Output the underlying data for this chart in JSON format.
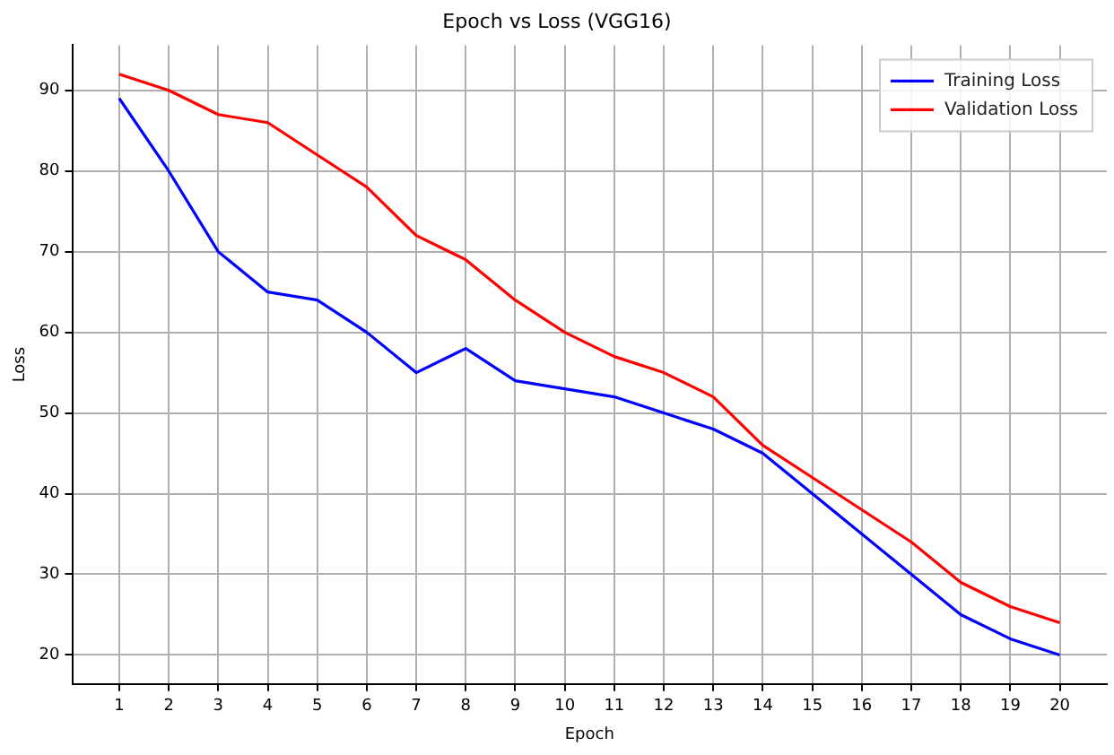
{
  "chart_data": {
    "type": "line",
    "title": "Epoch vs Loss (VGG16)",
    "xlabel": "Epoch",
    "ylabel": "Loss",
    "x": [
      1,
      2,
      3,
      4,
      5,
      6,
      7,
      8,
      9,
      10,
      11,
      12,
      13,
      14,
      15,
      16,
      17,
      18,
      19,
      20
    ],
    "series": [
      {
        "name": "Training Loss",
        "color": "#0000ff",
        "values": [
          89,
          80,
          70,
          65,
          64,
          60,
          55,
          58,
          54,
          53,
          52,
          50,
          48,
          45,
          40,
          35,
          30,
          25,
          22,
          20
        ]
      },
      {
        "name": "Validation Loss",
        "color": "#ff0000",
        "values": [
          92,
          90,
          87,
          86,
          82,
          78,
          72,
          69,
          64,
          60,
          57,
          55,
          52,
          46,
          42,
          38,
          34,
          29,
          26,
          24
        ]
      }
    ],
    "xlim": [
      0.05,
      20.95
    ],
    "xticks": [
      1,
      2,
      3,
      4,
      5,
      6,
      7,
      8,
      9,
      10,
      11,
      12,
      13,
      14,
      15,
      16,
      17,
      18,
      19,
      20
    ],
    "ylim": [
      16.4,
      95.6
    ],
    "yticks": [
      20,
      30,
      40,
      50,
      60,
      70,
      80,
      90
    ],
    "grid": true,
    "legend": "top right",
    "marker": "none",
    "line_style": "solid"
  }
}
